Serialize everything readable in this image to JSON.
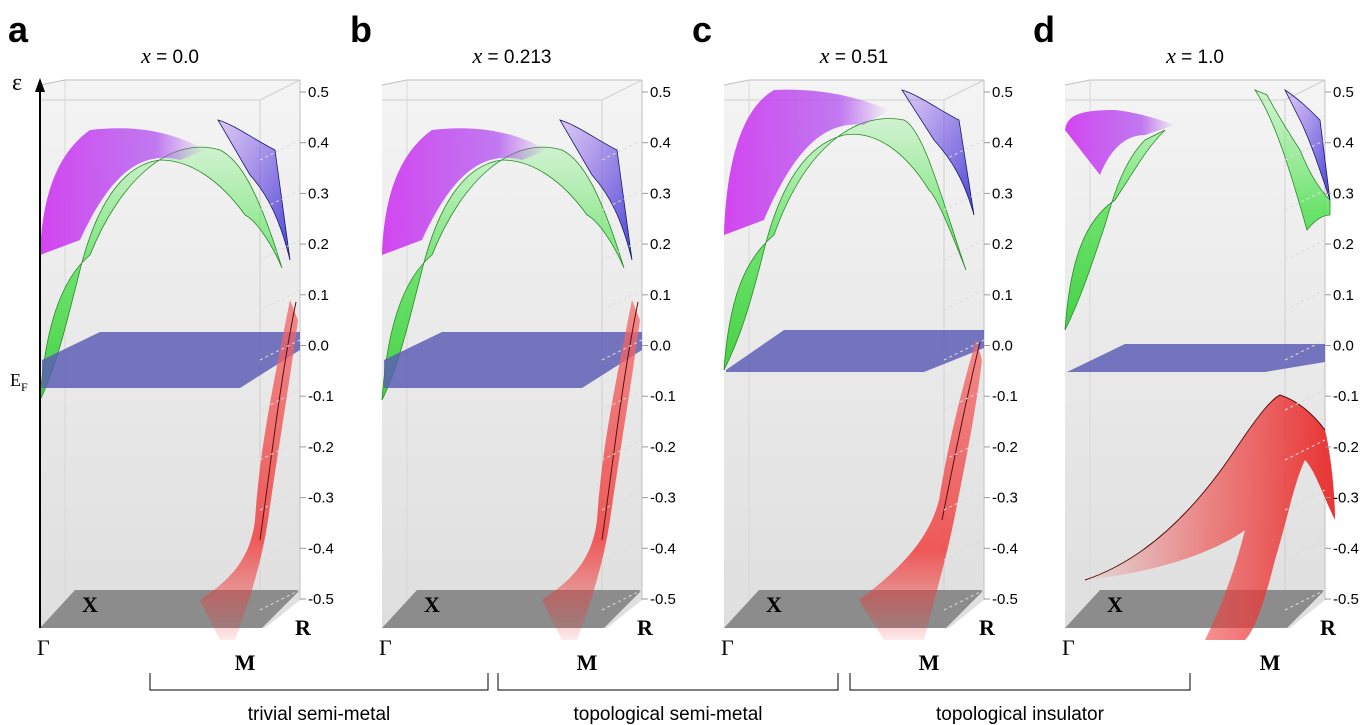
{
  "figure": {
    "axis_symbol": "ε",
    "fermi_label_main": "E",
    "fermi_label_sub": "F",
    "panels": [
      {
        "letter": "a",
        "x_label": "x = 0.0"
      },
      {
        "letter": "b",
        "x_label": "x = 0.213"
      },
      {
        "letter": "c",
        "x_label": "x = 0.51"
      },
      {
        "letter": "d",
        "x_label": "x = 1.0"
      }
    ],
    "energy_ticks": [
      "0.5",
      "0.4",
      "0.3",
      "0.2",
      "0.1",
      "0.0",
      "-0.1",
      "-0.2",
      "-0.3",
      "-0.4",
      "-0.5"
    ],
    "k_points": {
      "gamma": "Γ",
      "x": "X",
      "m": "M",
      "r": "R"
    },
    "phases": [
      {
        "label": "trivial semi-metal"
      },
      {
        "label": "topological semi-metal"
      },
      {
        "label": "topological insulator"
      }
    ],
    "colors": {
      "fermi_plane": "#5a5ab4",
      "conduction_green": "#4ee04e",
      "conduction_magenta": "#d040f0",
      "conduction_blue": "#5050e0",
      "valence_red": "#f04040",
      "floor": "#8c8c8c",
      "box_wall": "#e6e6e6"
    }
  }
}
